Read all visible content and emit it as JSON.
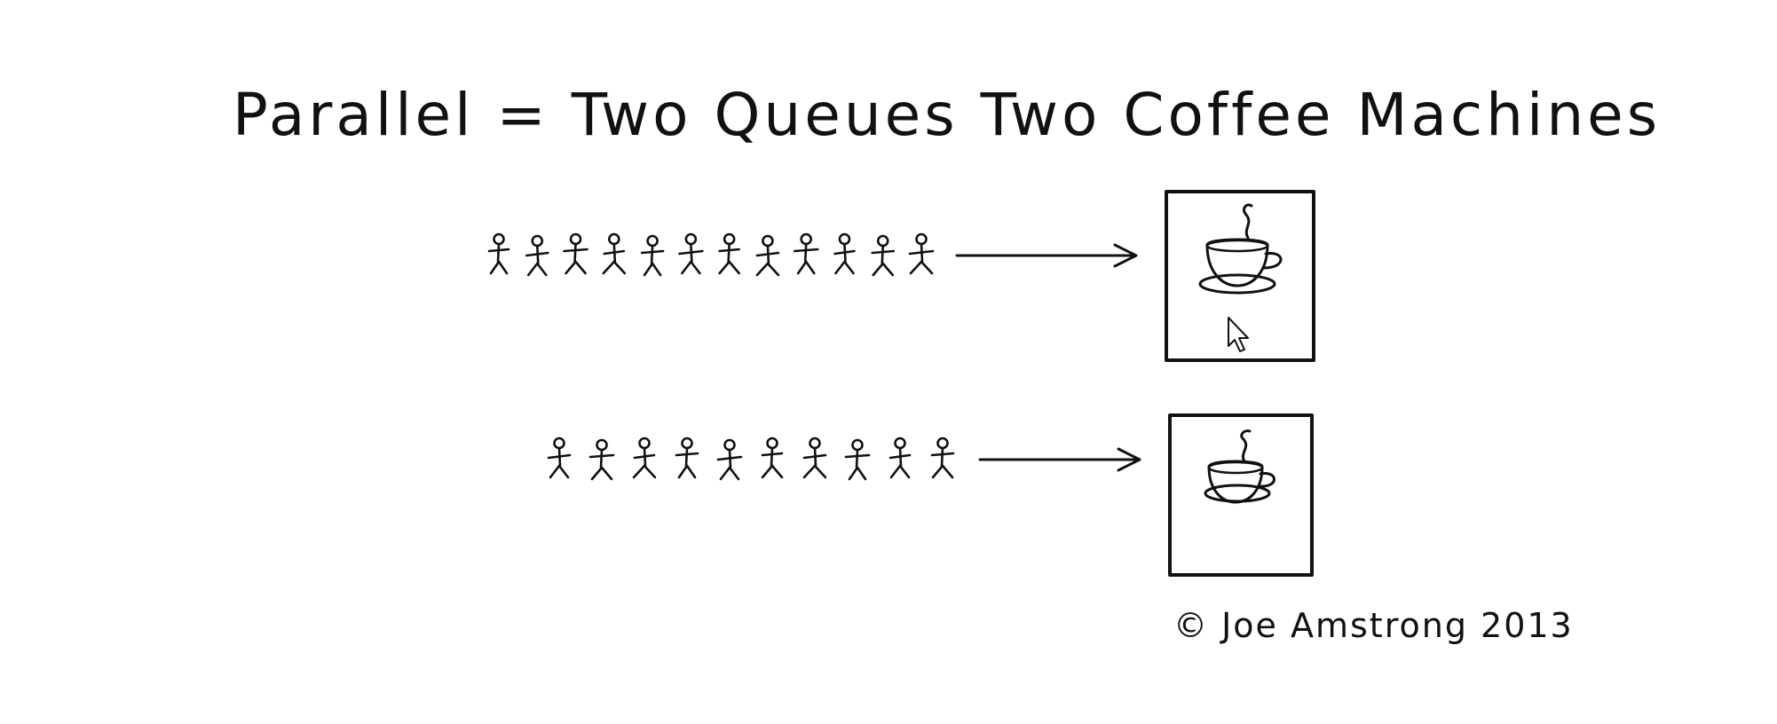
{
  "diagram": {
    "title": "Parallel = Two Queues Two Coffee Machines",
    "credit": "© Joe Amstrong 2013",
    "queues": [
      {
        "people": 12,
        "target": "coffee-machine-1"
      },
      {
        "people": 10,
        "target": "coffee-machine-2"
      }
    ],
    "icons": {
      "person": "stick-figure-icon",
      "machine": "coffee-machine-icon",
      "cup": "coffee-cup-icon",
      "arrow": "arrow-right-icon",
      "cursor": "mouse-cursor-icon"
    },
    "colors": {
      "ink": "#111111",
      "background": "#ffffff"
    }
  }
}
